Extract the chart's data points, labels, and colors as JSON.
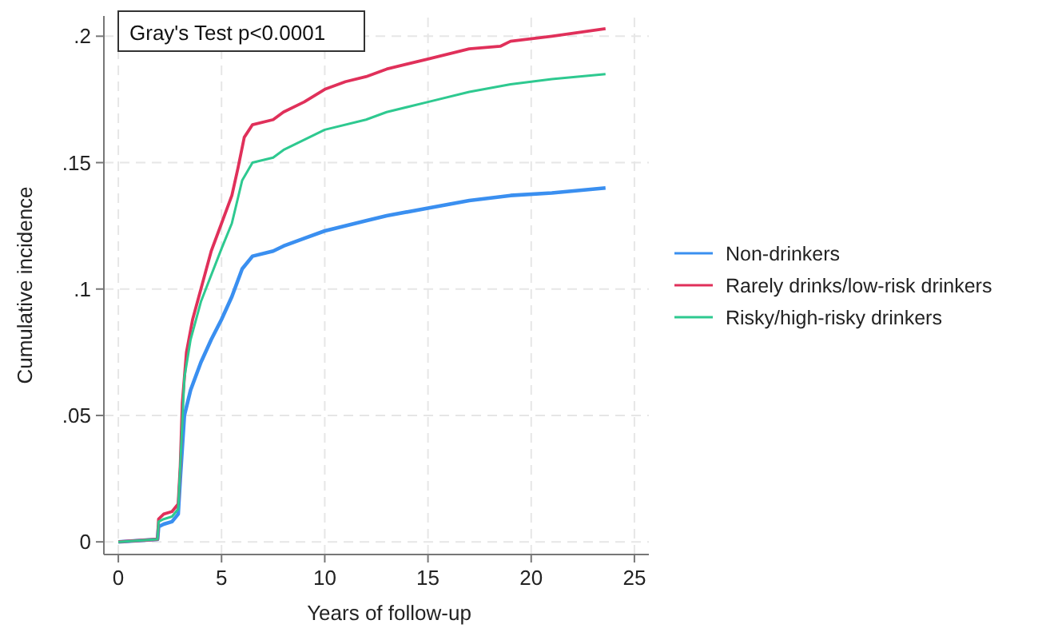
{
  "chart_data": {
    "type": "line",
    "xlabel": "Years of follow-up",
    "ylabel": "Cumulative incidence",
    "annotations": [
      "Gray's Test p<0.0001"
    ],
    "xlim": [
      -0.7,
      25.7
    ],
    "ylim": [
      -0.005,
      0.208
    ],
    "xticks": [
      0,
      5,
      10,
      15,
      20,
      25
    ],
    "yticks": [
      0,
      {
        "value": 0.05,
        "label": ".05"
      },
      {
        "value": 0.1,
        "label": ".1"
      },
      {
        "value": 0.15,
        "label": ".15"
      },
      {
        "value": 0.2,
        "label": ".2"
      }
    ],
    "grid": true,
    "legend": "right",
    "series": [
      {
        "name": "Non-drinkers",
        "color": "#3a8ff0",
        "x": [
          0,
          1.9,
          1.95,
          2.2,
          2.6,
          2.9,
          3.0,
          3.2,
          3.5,
          4,
          4.5,
          5,
          5.5,
          6,
          6.5,
          7.5,
          8,
          9,
          10,
          12,
          13,
          15,
          17,
          19,
          21,
          23.6
        ],
        "values": [
          0,
          0.001,
          0.006,
          0.007,
          0.008,
          0.011,
          0.025,
          0.05,
          0.06,
          0.071,
          0.08,
          0.088,
          0.097,
          0.108,
          0.113,
          0.115,
          0.117,
          0.12,
          0.123,
          0.127,
          0.129,
          0.132,
          0.135,
          0.137,
          0.138,
          0.14
        ]
      },
      {
        "name": "Rarely drinks/low-risk drinkers",
        "color": "#e0305a",
        "x": [
          0,
          1.9,
          1.95,
          2.2,
          2.6,
          2.9,
          3.0,
          3.1,
          3.3,
          3.6,
          4,
          4.5,
          5,
          5.5,
          5.8,
          6.1,
          6.5,
          7.5,
          8,
          9,
          10,
          11,
          12,
          13,
          15,
          17,
          18.5,
          19,
          21,
          23.6
        ],
        "values": [
          0,
          0.001,
          0.009,
          0.011,
          0.012,
          0.015,
          0.03,
          0.055,
          0.075,
          0.088,
          0.1,
          0.115,
          0.126,
          0.137,
          0.148,
          0.16,
          0.165,
          0.167,
          0.17,
          0.174,
          0.179,
          0.182,
          0.184,
          0.187,
          0.191,
          0.195,
          0.196,
          0.198,
          0.2,
          0.203
        ]
      },
      {
        "name": "Risky/high-risky drinkers",
        "color": "#2ec990",
        "x": [
          0,
          1.9,
          1.95,
          2.2,
          2.6,
          2.9,
          3.0,
          3.2,
          3.5,
          4,
          5,
          5.5,
          6,
          6.5,
          7.5,
          8,
          10,
          12,
          13,
          15,
          17,
          19,
          21,
          23.6
        ],
        "values": [
          0,
          0.001,
          0.008,
          0.009,
          0.01,
          0.013,
          0.03,
          0.065,
          0.08,
          0.095,
          0.116,
          0.126,
          0.143,
          0.15,
          0.152,
          0.155,
          0.163,
          0.167,
          0.17,
          0.174,
          0.178,
          0.181,
          0.183,
          0.185
        ]
      }
    ]
  }
}
